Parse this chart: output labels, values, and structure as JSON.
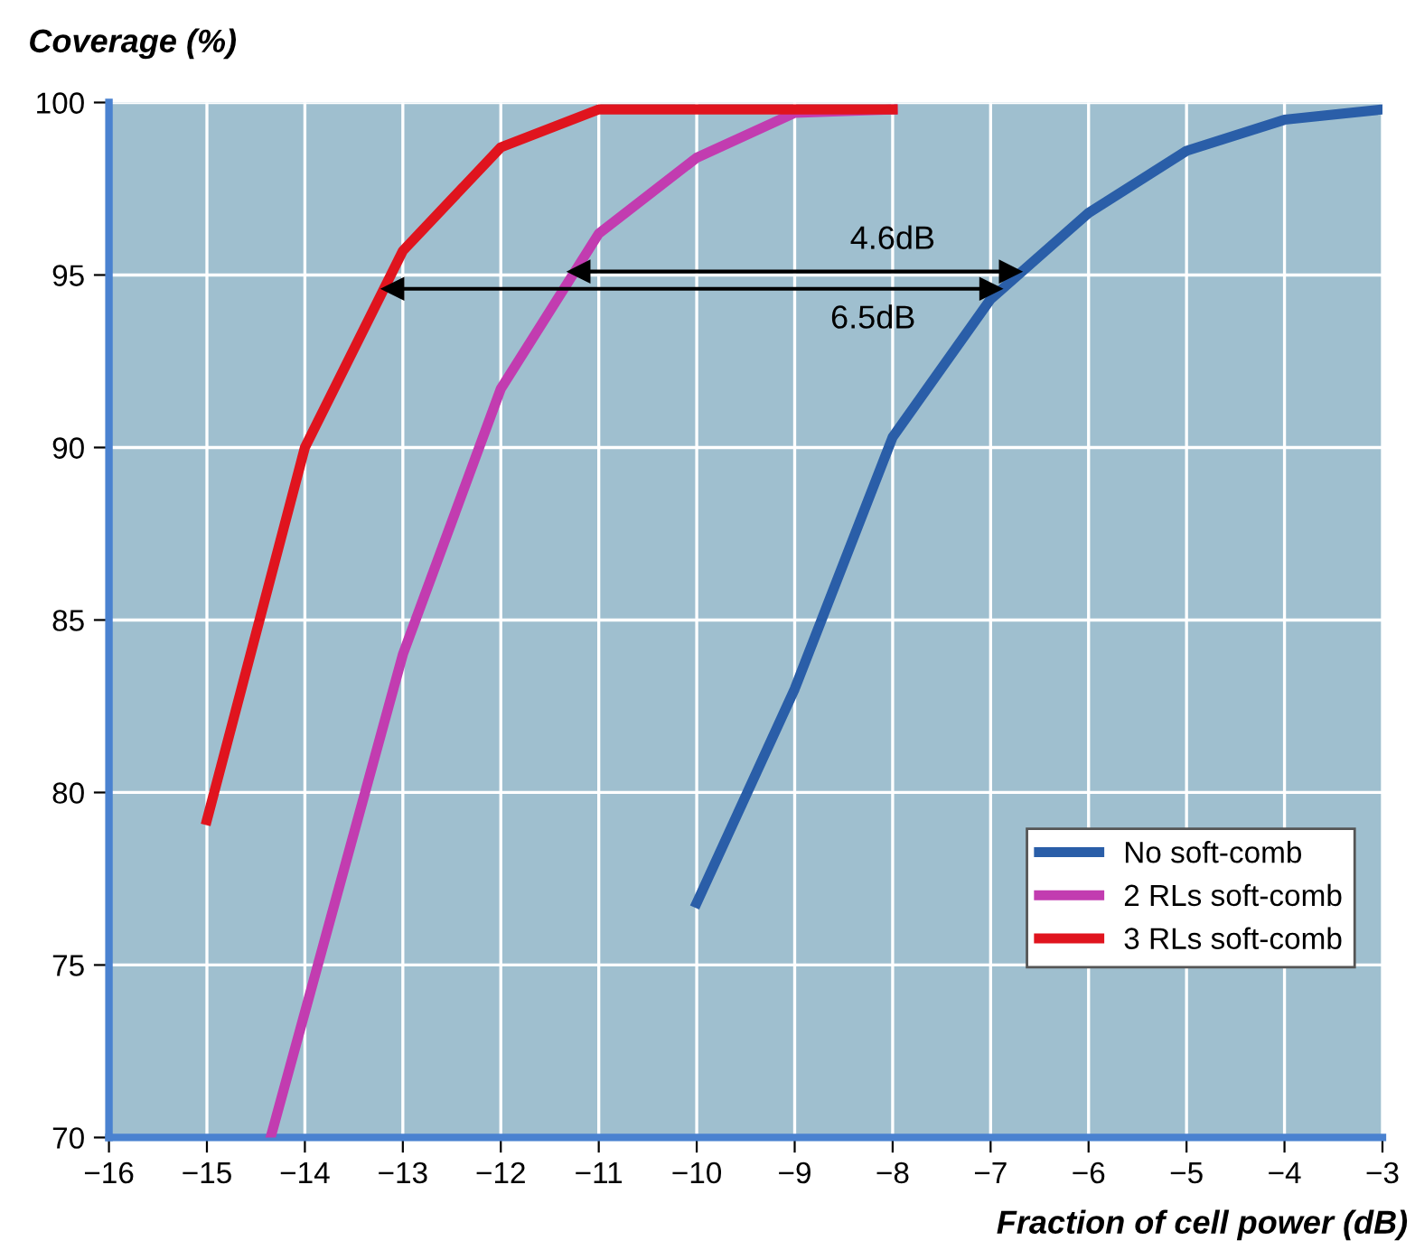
{
  "chart_data": {
    "type": "line",
    "ylabel": "Coverage (%)",
    "xlabel": "Fraction of cell power (dB)",
    "xlim": [
      -16,
      -3
    ],
    "xticks": [
      {
        "value": -16,
        "label": "−16"
      },
      {
        "value": -15,
        "label": "−15"
      },
      {
        "value": -14,
        "label": "−14"
      },
      {
        "value": -13,
        "label": "−13"
      },
      {
        "value": -12,
        "label": "−12"
      },
      {
        "value": -11,
        "label": "−11"
      },
      {
        "value": -10,
        "label": "−10"
      },
      {
        "value": -9,
        "label": "−9"
      },
      {
        "value": -8,
        "label": "−8"
      },
      {
        "value": -7,
        "label": "−7"
      },
      {
        "value": -6,
        "label": "−6"
      },
      {
        "value": -5,
        "label": "−5"
      },
      {
        "value": -4,
        "label": "−4"
      },
      {
        "value": -3,
        "label": "−3"
      }
    ],
    "ylim": [
      70,
      100
    ],
    "yticks": [
      70,
      75,
      80,
      85,
      90,
      95,
      100
    ],
    "grid": true,
    "legend": "bottom right",
    "marker": "none",
    "line_style": "solid",
    "series": [
      {
        "name": "No soft-comb",
        "color": "#2a5ea8",
        "x": [
          -10,
          -9,
          -8,
          -7,
          -6,
          -5,
          -4,
          -3
        ],
        "values": [
          76.8,
          83,
          90.3,
          94.3,
          96.8,
          98.6,
          99.5,
          99.8
        ]
      },
      {
        "name": "2 RLs soft-comb",
        "color": "#c23cb0",
        "x": [
          -14.35,
          -13,
          -12,
          -11,
          -10,
          -9,
          -8
        ],
        "values": [
          70,
          84,
          91.7,
          96.2,
          98.4,
          99.7,
          99.8
        ]
      },
      {
        "name": "3 RLs soft-comb",
        "color": "#e0141e",
        "x": [
          -15,
          -14,
          -13,
          -12,
          -11,
          -10,
          -9,
          -8
        ],
        "values": [
          79.2,
          90,
          95.7,
          98.7,
          99.8,
          99.8,
          99.8,
          99.8
        ]
      },
      {
        "type": "line",
        "marker": "triangle",
        "color": "#000000",
        "x": [
          -11.2,
          -6.8
        ],
        "values": [
          95.1,
          95.1
        ]
      },
      {
        "type": "line",
        "marker": "triangle",
        "color": "#000000",
        "x": [
          -13.1,
          -7.0
        ],
        "values": [
          94.6,
          94.6
        ]
      }
    ],
    "annotations": [
      {
        "text": "4.6dB",
        "x": -6.8,
        "y": 95.1
      },
      {
        "text": "6.5dB",
        "x": -7.0,
        "y": 94.6
      }
    ]
  }
}
